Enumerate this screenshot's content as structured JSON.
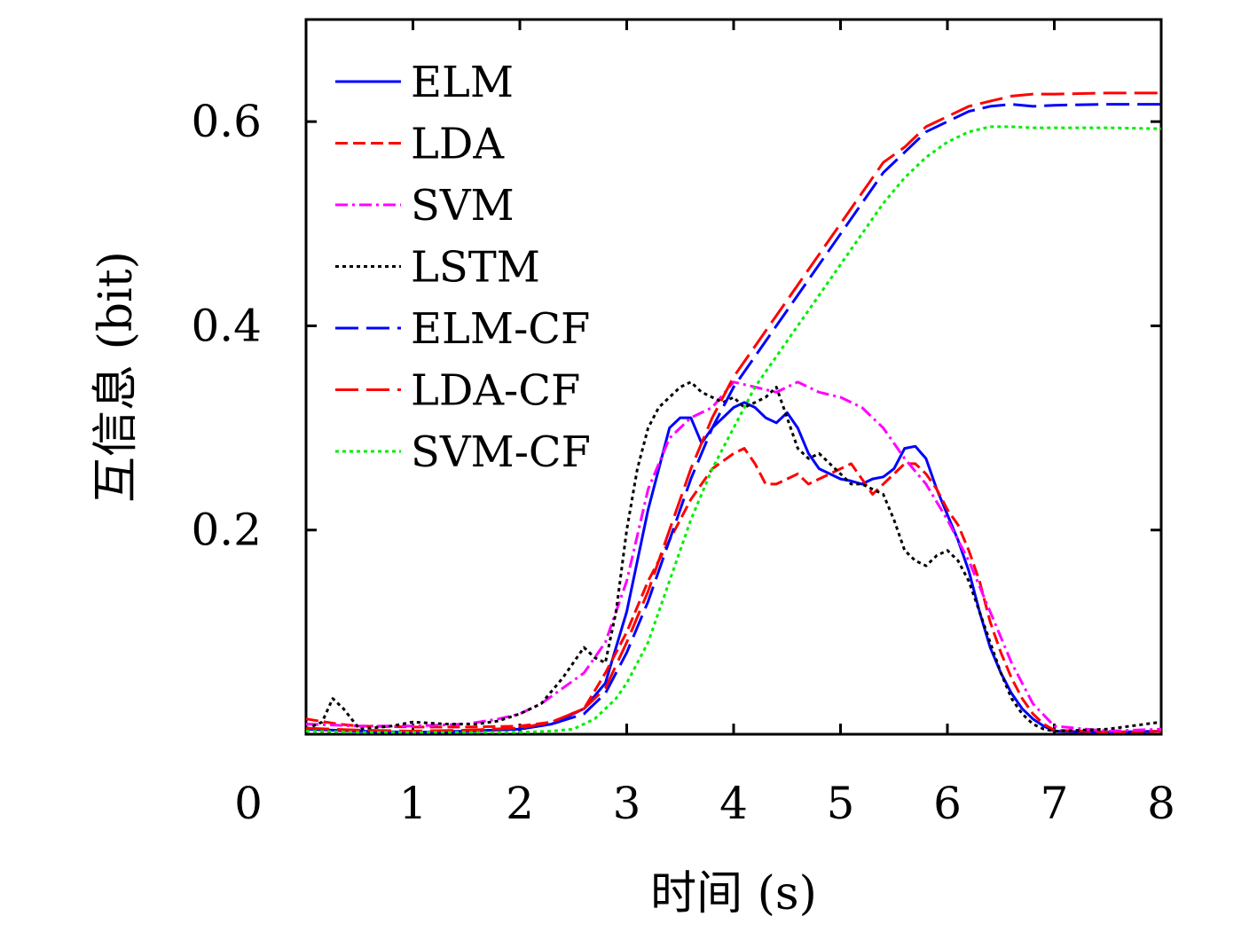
{
  "chart_data": {
    "type": "line",
    "title": "",
    "xlabel": "时间 (s)",
    "ylabel": "互信息 (bit)",
    "xlim": [
      0,
      8
    ],
    "ylim": [
      0,
      0.7
    ],
    "xticks": [
      {
        "value": 0,
        "label": "0"
      },
      {
        "value": 1,
        "label": "1"
      },
      {
        "value": 2,
        "label": "2"
      },
      {
        "value": 3,
        "label": "3"
      },
      {
        "value": 4,
        "label": "4"
      },
      {
        "value": 5,
        "label": "5"
      },
      {
        "value": 6,
        "label": "6"
      },
      {
        "value": 7,
        "label": "7"
      },
      {
        "value": 8,
        "label": "8"
      }
    ],
    "yticks": [
      {
        "value": 0.2,
        "label": "0.2"
      },
      {
        "value": 0.4,
        "label": "0.4"
      },
      {
        "value": 0.6,
        "label": "0.6"
      }
    ],
    "grid": false,
    "legend_position": "top-left",
    "series": [
      {
        "name": "ELM",
        "color": "#0000ff",
        "dash": "solid",
        "x": [
          0,
          0.5,
          1,
          1.5,
          2,
          2.3,
          2.6,
          2.8,
          3,
          3.2,
          3.4,
          3.5,
          3.6,
          3.7,
          3.8,
          3.9,
          4.0,
          4.1,
          4.2,
          4.3,
          4.4,
          4.5,
          4.6,
          4.7,
          4.8,
          4.9,
          5.0,
          5.1,
          5.2,
          5.3,
          5.4,
          5.5,
          5.6,
          5.7,
          5.8,
          5.9,
          6.0,
          6.1,
          6.2,
          6.3,
          6.4,
          6.5,
          6.6,
          6.7,
          6.8,
          6.9,
          7.0,
          7.5,
          8.0
        ],
        "y": [
          0.005,
          0.003,
          0.002,
          0.003,
          0.005,
          0.01,
          0.025,
          0.05,
          0.12,
          0.22,
          0.3,
          0.31,
          0.31,
          0.285,
          0.3,
          0.31,
          0.32,
          0.325,
          0.32,
          0.31,
          0.305,
          0.315,
          0.3,
          0.275,
          0.26,
          0.255,
          0.25,
          0.248,
          0.245,
          0.25,
          0.252,
          0.26,
          0.28,
          0.282,
          0.27,
          0.24,
          0.215,
          0.19,
          0.16,
          0.12,
          0.085,
          0.06,
          0.04,
          0.025,
          0.015,
          0.008,
          0.003,
          0.002,
          0.003
        ]
      },
      {
        "name": "LDA",
        "color": "#ff0000",
        "dash": "dashed",
        "x": [
          0,
          0.3,
          0.5,
          1,
          1.5,
          2,
          2.3,
          2.6,
          2.8,
          3,
          3.2,
          3.4,
          3.6,
          3.8,
          4.0,
          4.1,
          4.2,
          4.3,
          4.4,
          4.5,
          4.6,
          4.7,
          4.8,
          4.9,
          5.0,
          5.1,
          5.2,
          5.3,
          5.4,
          5.5,
          5.6,
          5.7,
          5.8,
          5.9,
          6.0,
          6.1,
          6.2,
          6.3,
          6.4,
          6.5,
          6.6,
          6.7,
          6.8,
          6.9,
          7.0,
          7.5,
          8.0
        ],
        "y": [
          0.015,
          0.01,
          0.008,
          0.007,
          0.007,
          0.008,
          0.012,
          0.025,
          0.06,
          0.1,
          0.15,
          0.19,
          0.23,
          0.26,
          0.275,
          0.28,
          0.265,
          0.245,
          0.245,
          0.25,
          0.255,
          0.245,
          0.25,
          0.255,
          0.26,
          0.265,
          0.25,
          0.235,
          0.245,
          0.255,
          0.265,
          0.265,
          0.255,
          0.24,
          0.22,
          0.205,
          0.18,
          0.15,
          0.11,
          0.08,
          0.055,
          0.035,
          0.02,
          0.01,
          0.004,
          0.002,
          0.003
        ]
      },
      {
        "name": "SVM",
        "color": "#ff00ff",
        "dash": "dashdot",
        "x": [
          0,
          0.5,
          1,
          1.5,
          1.8,
          2,
          2.2,
          2.4,
          2.6,
          2.8,
          3,
          3.2,
          3.4,
          3.6,
          3.8,
          4.0,
          4.2,
          4.4,
          4.5,
          4.6,
          4.8,
          5.0,
          5.2,
          5.4,
          5.6,
          5.8,
          6.0,
          6.2,
          6.4,
          6.6,
          6.8,
          7.0,
          7.5,
          8.0
        ],
        "y": [
          0.01,
          0.008,
          0.008,
          0.01,
          0.015,
          0.02,
          0.03,
          0.045,
          0.06,
          0.09,
          0.15,
          0.24,
          0.29,
          0.31,
          0.32,
          0.345,
          0.34,
          0.335,
          0.34,
          0.345,
          0.335,
          0.33,
          0.32,
          0.3,
          0.27,
          0.245,
          0.21,
          0.17,
          0.12,
          0.07,
          0.03,
          0.008,
          0.003,
          0.005
        ]
      },
      {
        "name": "LSTM",
        "color": "#000000",
        "dash": "dotted",
        "x": [
          0,
          0.15,
          0.25,
          0.35,
          0.5,
          0.8,
          1,
          1.3,
          1.6,
          1.8,
          2,
          2.2,
          2.4,
          2.5,
          2.6,
          2.7,
          2.8,
          2.9,
          3,
          3.1,
          3.2,
          3.3,
          3.4,
          3.5,
          3.6,
          3.7,
          3.8,
          3.9,
          4.0,
          4.1,
          4.2,
          4.3,
          4.4,
          4.5,
          4.6,
          4.7,
          4.8,
          4.9,
          5.0,
          5.1,
          5.2,
          5.3,
          5.4,
          5.5,
          5.6,
          5.7,
          5.8,
          5.9,
          6.0,
          6.1,
          6.2,
          6.3,
          6.4,
          6.5,
          6.6,
          6.7,
          6.8,
          6.9,
          7.0,
          7.5,
          8.0
        ],
        "y": [
          0.005,
          0.012,
          0.035,
          0.025,
          0.005,
          0.008,
          0.012,
          0.01,
          0.01,
          0.013,
          0.02,
          0.03,
          0.055,
          0.07,
          0.085,
          0.075,
          0.07,
          0.12,
          0.2,
          0.26,
          0.3,
          0.32,
          0.33,
          0.34,
          0.345,
          0.335,
          0.33,
          0.325,
          0.33,
          0.32,
          0.325,
          0.33,
          0.34,
          0.31,
          0.28,
          0.27,
          0.275,
          0.265,
          0.255,
          0.245,
          0.245,
          0.24,
          0.235,
          0.21,
          0.18,
          0.17,
          0.165,
          0.175,
          0.18,
          0.17,
          0.15,
          0.12,
          0.09,
          0.06,
          0.035,
          0.02,
          0.01,
          0.005,
          0.003,
          0.005,
          0.012
        ]
      },
      {
        "name": "ELM-CF",
        "color": "#0000ff",
        "dash": "longdash",
        "x": [
          0,
          0.5,
          1,
          1.5,
          2,
          2.3,
          2.6,
          2.8,
          3,
          3.2,
          3.4,
          3.6,
          3.8,
          4.0,
          4.2,
          4.4,
          4.6,
          4.8,
          5.0,
          5.2,
          5.4,
          5.6,
          5.8,
          6.0,
          6.2,
          6.4,
          6.6,
          6.8,
          7.0,
          7.5,
          8.0
        ],
        "y": [
          0.005,
          0.003,
          0.002,
          0.003,
          0.005,
          0.01,
          0.02,
          0.04,
          0.08,
          0.13,
          0.19,
          0.25,
          0.3,
          0.34,
          0.37,
          0.4,
          0.43,
          0.46,
          0.49,
          0.52,
          0.55,
          0.57,
          0.59,
          0.6,
          0.61,
          0.615,
          0.617,
          0.615,
          0.616,
          0.617,
          0.617
        ]
      },
      {
        "name": "LDA-CF",
        "color": "#ff0000",
        "dash": "longdash",
        "x": [
          0,
          0.5,
          1,
          1.5,
          2,
          2.3,
          2.6,
          2.8,
          3,
          3.2,
          3.4,
          3.6,
          3.8,
          4.0,
          4.2,
          4.4,
          4.6,
          4.8,
          5.0,
          5.2,
          5.4,
          5.6,
          5.8,
          6.0,
          6.2,
          6.4,
          6.6,
          6.8,
          7.0,
          7.5,
          8.0
        ],
        "y": [
          0.006,
          0.004,
          0.003,
          0.004,
          0.006,
          0.012,
          0.025,
          0.045,
          0.09,
          0.14,
          0.2,
          0.26,
          0.31,
          0.35,
          0.38,
          0.41,
          0.44,
          0.47,
          0.5,
          0.53,
          0.56,
          0.575,
          0.595,
          0.605,
          0.615,
          0.62,
          0.625,
          0.627,
          0.627,
          0.628,
          0.628
        ]
      },
      {
        "name": "SVM-CF",
        "color": "#00ee00",
        "dash": "dotted",
        "x": [
          0,
          0.5,
          1,
          1.5,
          2,
          2.3,
          2.5,
          2.7,
          2.9,
          3,
          3.2,
          3.4,
          3.6,
          3.8,
          4.0,
          4.2,
          4.4,
          4.6,
          4.8,
          5.0,
          5.2,
          5.4,
          5.6,
          5.8,
          6.0,
          6.2,
          6.4,
          6.6,
          6.8,
          7.0,
          7.5,
          8.0
        ],
        "y": [
          0.003,
          0.002,
          0.002,
          0.002,
          0.002,
          0.003,
          0.005,
          0.015,
          0.035,
          0.05,
          0.09,
          0.15,
          0.21,
          0.26,
          0.3,
          0.34,
          0.37,
          0.4,
          0.43,
          0.46,
          0.49,
          0.52,
          0.545,
          0.565,
          0.58,
          0.59,
          0.595,
          0.595,
          0.594,
          0.594,
          0.594,
          0.593
        ]
      }
    ]
  }
}
